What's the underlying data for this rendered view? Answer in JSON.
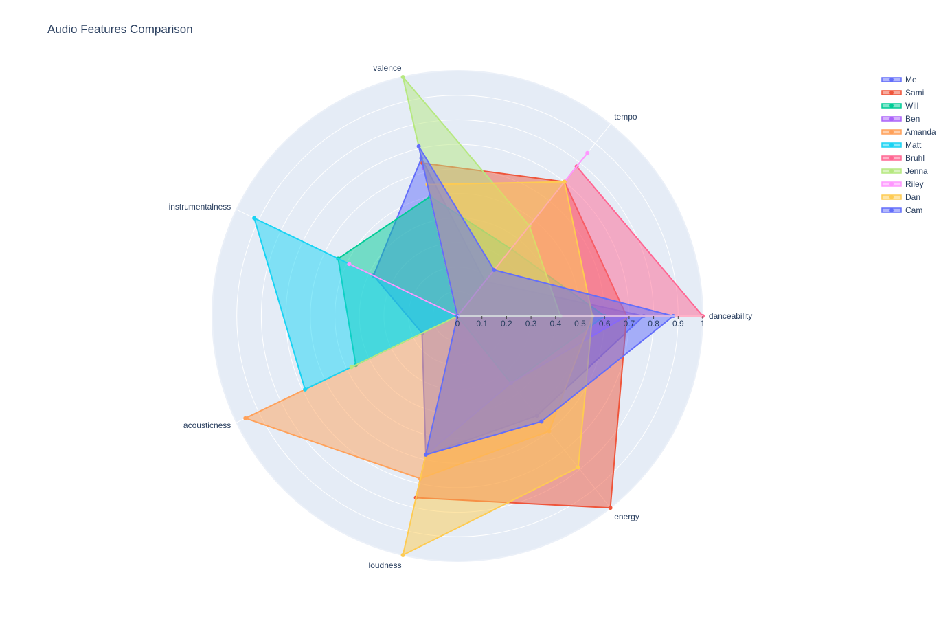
{
  "chart_data": {
    "type": "radar",
    "title": "Audio Features Comparison",
    "axes": [
      "danceability",
      "energy",
      "loudness",
      "acousticness",
      "instrumentalness",
      "valence",
      "tempo"
    ],
    "radial_range": [
      0,
      1
    ],
    "radial_ticks": [
      "0",
      "0.1",
      "0.2",
      "0.3",
      "0.4",
      "0.5",
      "0.6",
      "0.7",
      "0.8",
      "0.9",
      "1"
    ],
    "legend_position": "top-right",
    "series": [
      {
        "name": "Me",
        "color": "#636efa",
        "values": [
          0.76,
          0.52,
          0.58,
          0.16,
          0.38,
          0.66,
          0.18
        ]
      },
      {
        "name": "Sami",
        "color": "#ef553b",
        "values": [
          0.69,
          1.0,
          0.76,
          0.0,
          0.0,
          0.64,
          0.7
        ]
      },
      {
        "name": "Will",
        "color": "#00cc96",
        "values": [
          0.6,
          0.35,
          0.0,
          0.46,
          0.54,
          0.5,
          0.35
        ]
      },
      {
        "name": "Ben",
        "color": "#ab63fa",
        "values": [
          0.69,
          0.35,
          0.58,
          0.0,
          0.0,
          0.62,
          0.0
        ]
      },
      {
        "name": "Amanda",
        "color": "#ffa15a",
        "values": [
          0.55,
          0.6,
          0.68,
          0.96,
          0.0,
          0.55,
          0.0
        ]
      },
      {
        "name": "Matt",
        "color": "#19d3f3",
        "values": [
          0.55,
          0.0,
          0.0,
          0.69,
          0.92,
          0.0,
          0.0
        ]
      },
      {
        "name": "Bruhl",
        "color": "#ff6692",
        "values": [
          1.0,
          0.0,
          0.0,
          0.0,
          0.0,
          0.0,
          0.78
        ]
      },
      {
        "name": "Jenna",
        "color": "#b6e880",
        "values": [
          0.42,
          0.0,
          0.0,
          0.48,
          0.0,
          1.0,
          0.47
        ]
      },
      {
        "name": "Riley",
        "color": "#ff97ff",
        "values": [
          0.0,
          0.0,
          0.0,
          0.0,
          0.49,
          0.0,
          0.85
        ]
      },
      {
        "name": "Dan",
        "color": "#fecb52",
        "values": [
          0.55,
          0.79,
          1.0,
          0.0,
          0.0,
          0.55,
          0.7
        ]
      },
      {
        "name": "Cam",
        "color": "#636efa",
        "values": [
          0.88,
          0.55,
          0.58,
          0.0,
          0.0,
          0.71,
          0.24
        ]
      }
    ]
  }
}
